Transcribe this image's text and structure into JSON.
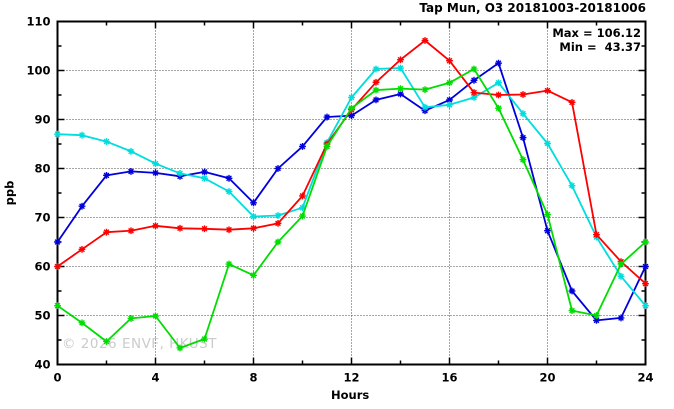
{
  "window": {
    "title": "Tap Mun, O3 20181003-20181006"
  },
  "header": {
    "chart_title": "Tap Mun, O3 20181003-20181006",
    "max_line": "Max = 106.12",
    "min_line": "Min =  43.37"
  },
  "watermark": "© 2026 ENVF, HKUST",
  "axes": {
    "ylabel": "ppb",
    "xlabel": "Hours",
    "x_tick_labels": [
      "0",
      "4",
      "8",
      "12",
      "16",
      "20",
      "24"
    ],
    "y_tick_labels": [
      "40",
      "50",
      "60",
      "70",
      "80",
      "90",
      "100",
      "110"
    ]
  },
  "chart_data": {
    "type": "line",
    "title": "Tap Mun, O3 20181003-20181006",
    "xlabel": "Hours",
    "ylabel": "ppb",
    "xlim": [
      0,
      24
    ],
    "ylim": [
      40,
      110
    ],
    "x_major_ticks": [
      0,
      4,
      8,
      12,
      16,
      20,
      24
    ],
    "x_minor_ticks": [
      2,
      6,
      10,
      14,
      18,
      22
    ],
    "y_major_ticks": [
      40,
      50,
      60,
      70,
      80,
      90,
      100,
      110
    ],
    "y_minor_ticks": [
      45,
      55,
      65,
      75,
      85,
      95,
      105
    ],
    "grid_x": [
      4,
      8,
      12,
      16,
      20
    ],
    "grid_y": [
      50,
      60,
      70,
      80,
      90,
      100
    ],
    "grid_on": true,
    "legend_position": "none",
    "marker": "asterisk",
    "x": [
      0,
      1,
      2,
      3,
      4,
      5,
      6,
      7,
      8,
      9,
      10,
      11,
      12,
      13,
      14,
      15,
      16,
      17,
      18,
      19,
      20,
      21,
      22,
      23,
      24
    ],
    "series": [
      {
        "name": "blue-day",
        "color": "#0000dd",
        "values": [
          65,
          72.3,
          78.6,
          79.4,
          79.1,
          78.4,
          79.3,
          78,
          73,
          80,
          84.5,
          90.5,
          90.8,
          94,
          95.2,
          91.8,
          94,
          98,
          101.5,
          86.3,
          67.3,
          55,
          49,
          49.5,
          60
        ]
      },
      {
        "name": "cyan-day",
        "color": "#00dddd",
        "values": [
          87,
          86.8,
          85.5,
          83.5,
          81,
          79,
          78,
          75.3,
          70.2,
          70.4,
          72,
          85.3,
          94.5,
          100.3,
          100.5,
          92.5,
          93,
          94.5,
          97.5,
          91.2,
          85.1,
          76.5,
          66,
          58,
          52
        ]
      },
      {
        "name": "red-day",
        "color": "#ff0000",
        "values": [
          60,
          63.5,
          67,
          67.3,
          68.3,
          67.8,
          67.7,
          67.5,
          67.8,
          68.8,
          74.4,
          85,
          92,
          97.6,
          102.2,
          106.12,
          102,
          95.5,
          95,
          95.1,
          95.9,
          93.5,
          66.5,
          61,
          56.5
        ]
      },
      {
        "name": "green-day",
        "color": "#00dd00",
        "values": [
          52,
          48.5,
          44.7,
          49.4,
          49.9,
          43.37,
          45.2,
          60.5,
          58.2,
          65,
          70.3,
          84.5,
          92.3,
          96,
          96.3,
          96.1,
          97.5,
          100.3,
          92.3,
          81.8,
          70.6,
          51,
          50,
          60.5,
          65
        ]
      }
    ],
    "annotations": {
      "max": 106.12,
      "min": 43.37
    }
  }
}
